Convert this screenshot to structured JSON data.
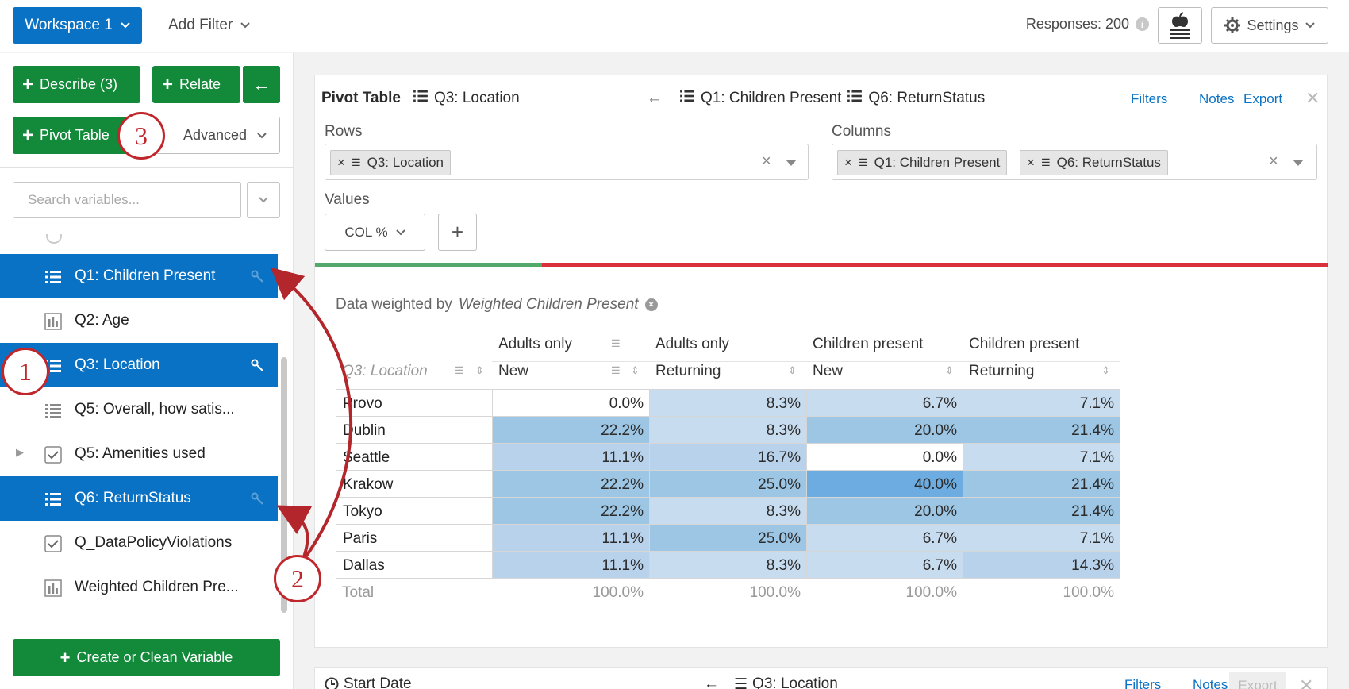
{
  "topbar": {
    "workspace_label": "Workspace 1",
    "add_filter_label": "Add Filter",
    "responses_label": "Responses: 200",
    "settings_label": "Settings"
  },
  "left": {
    "describe_label": "Describe (3)",
    "relate_label": "Relate",
    "pivot_label": "Pivot Table",
    "advanced_label": "Advanced",
    "search_placeholder": "Search variables...",
    "variables": [
      {
        "label": "Q1: Children Present",
        "icon": "list-icon",
        "selected": true
      },
      {
        "label": "Q2: Age",
        "icon": "bar-chart-icon",
        "selected": false
      },
      {
        "label": "Q3: Location",
        "icon": "list-icon",
        "selected": true
      },
      {
        "label": "Q5: Overall, how satis...",
        "icon": "list-icon",
        "selected": false
      },
      {
        "label": "Q5: Amenities used",
        "icon": "checkbox-icon",
        "selected": false
      },
      {
        "label": "Q6: ReturnStatus",
        "icon": "list-icon",
        "selected": true
      },
      {
        "label": "Q_DataPolicyViolations",
        "icon": "checkbox-icon",
        "selected": false
      },
      {
        "label": "Weighted Children Pre...",
        "icon": "bar-chart-icon",
        "selected": false
      }
    ],
    "create_label": "Create or Clean Variable"
  },
  "card": {
    "title": "Pivot Table",
    "row_var": "Q3: Location",
    "col_var1": "Q1: Children Present",
    "col_var2": "Q6: ReturnStatus",
    "filters_label": "Filters",
    "notes_label": "Notes",
    "export_label": "Export",
    "rows_label": "Rows",
    "columns_label": "Columns",
    "values_label": "Values",
    "values_select": "COL %",
    "weighted_prefix": "Data weighted by",
    "weighted_var": "Weighted Children Present",
    "progress_fraction": 0.224,
    "colors": {
      "accent": "#0a72c4",
      "green": "#13893a",
      "red": "#d9303c"
    }
  },
  "table": {
    "row_header": "Q3: Location",
    "col_groups": [
      "Adults only",
      "Adults only",
      "Children present",
      "Children present"
    ],
    "col_subs": [
      "New",
      "Returning",
      "New",
      "Returning"
    ],
    "rows": [
      {
        "label": "Provo",
        "values": [
          "0.0%",
          "8.3%",
          "6.7%",
          "7.1%"
        ]
      },
      {
        "label": "Dublin",
        "values": [
          "22.2%",
          "8.3%",
          "20.0%",
          "21.4%"
        ]
      },
      {
        "label": "Seattle",
        "values": [
          "11.1%",
          "16.7%",
          "0.0%",
          "7.1%"
        ]
      },
      {
        "label": "Krakow",
        "values": [
          "22.2%",
          "25.0%",
          "40.0%",
          "21.4%"
        ]
      },
      {
        "label": "Tokyo",
        "values": [
          "22.2%",
          "8.3%",
          "20.0%",
          "21.4%"
        ]
      },
      {
        "label": "Paris",
        "values": [
          "11.1%",
          "25.0%",
          "6.7%",
          "7.1%"
        ]
      },
      {
        "label": "Dallas",
        "values": [
          "11.1%",
          "8.3%",
          "6.7%",
          "14.3%"
        ]
      }
    ],
    "total_label": "Total",
    "totals": [
      "100.0%",
      "100.0%",
      "100.0%",
      "100.0%"
    ]
  },
  "card2": {
    "title": "Start Date",
    "var": "Q3: Location",
    "filters_label": "Filters",
    "notes_label": "Notes",
    "export_label": "Export"
  },
  "badges": [
    "1",
    "2",
    "3"
  ]
}
